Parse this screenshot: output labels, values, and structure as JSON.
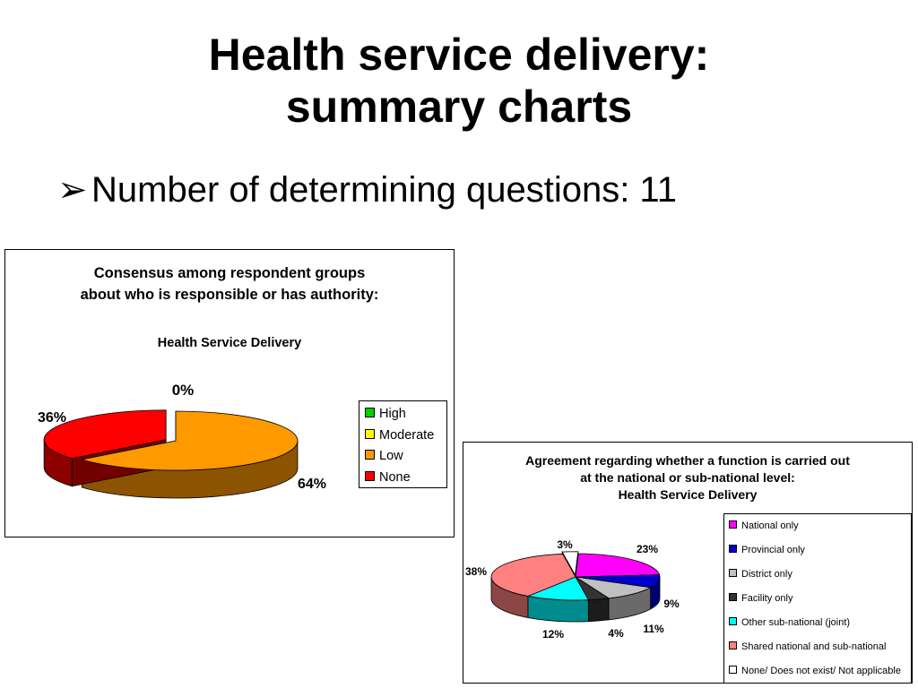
{
  "slide": {
    "title_line1": "Health service delivery:",
    "title_line2": "summary charts",
    "bullet_arrow": "➢",
    "bullet_text": "Number of determining questions: 11"
  },
  "chart_data": [
    {
      "type": "pie",
      "title_line1": "Consensus among respondent groups",
      "title_line2": "about who is responsible or has authority:",
      "subtitle": "Health Service Delivery",
      "categories": [
        "High",
        "Moderate",
        "Low",
        "None"
      ],
      "values": [
        0,
        0,
        64,
        36
      ],
      "data_labels": [
        "",
        "0%",
        "64%",
        "36%"
      ],
      "colors": [
        "#00d000",
        "#ffff00",
        "#ff9900",
        "#ff0000"
      ],
      "legend_position": "right",
      "three_d": true
    },
    {
      "type": "pie",
      "title_line1": "Agreement regarding whether a function is carried out",
      "title_line2": "at the national or sub-national level:",
      "title_line3": "Health Service Delivery",
      "categories": [
        "National only",
        "Provincial only",
        "District only",
        "Facility only",
        "Other sub-national (joint)",
        "Shared national and sub-national",
        "None/ Does not exist/ Not applicable"
      ],
      "values": [
        23,
        9,
        11,
        4,
        12,
        38,
        3
      ],
      "data_labels": [
        "23%",
        "9%",
        "11%",
        "4%",
        "12%",
        "38%",
        "3%"
      ],
      "colors": [
        "#ff00ff",
        "#0000cc",
        "#c0c0c0",
        "#333333",
        "#00ffff",
        "#ff8080",
        "#ffffff"
      ],
      "legend_position": "right",
      "three_d": true
    }
  ]
}
